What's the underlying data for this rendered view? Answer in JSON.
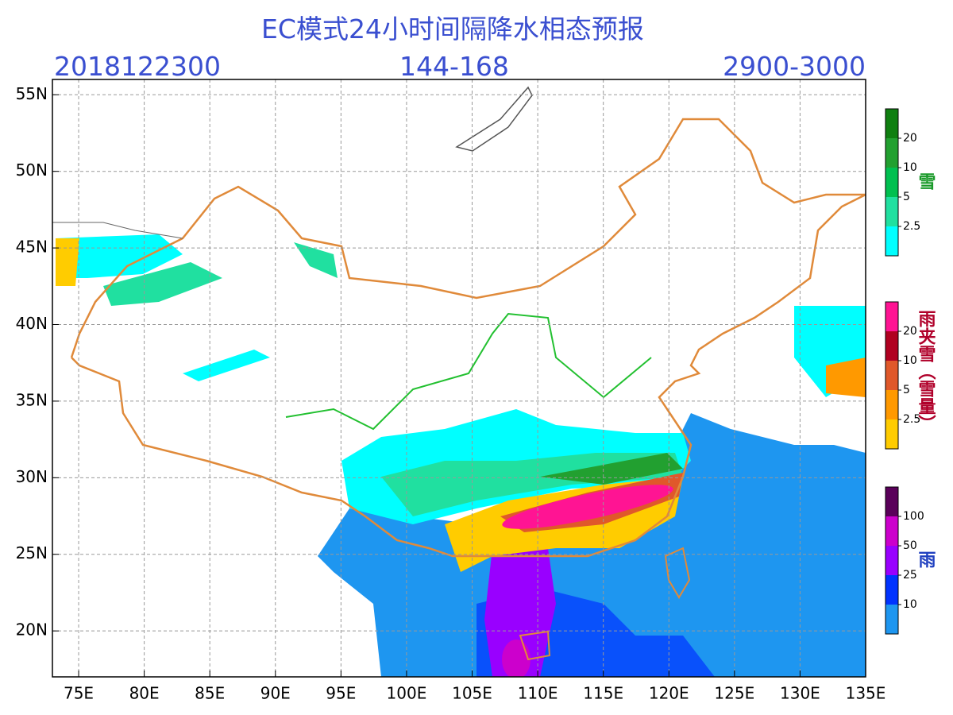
{
  "header": {
    "title": "EC模式24小时间隔降水相态预报",
    "init_time": "2018122300",
    "forecast_hours": "144-168",
    "code": "2900-3000"
  },
  "map": {
    "lonlim": [
      73,
      135
    ],
    "latlim": [
      17,
      56
    ],
    "lonticks": [
      {
        "value": 75,
        "label": "75E"
      },
      {
        "value": 80,
        "label": "80E"
      },
      {
        "value": 85,
        "label": "85E"
      },
      {
        "value": 90,
        "label": "90E"
      },
      {
        "value": 95,
        "label": "95E"
      },
      {
        "value": 100,
        "label": "100E"
      },
      {
        "value": 105,
        "label": "105E"
      },
      {
        "value": 110,
        "label": "110E"
      },
      {
        "value": 115,
        "label": "115E"
      },
      {
        "value": 120,
        "label": "120E"
      },
      {
        "value": 125,
        "label": "125E"
      },
      {
        "value": 130,
        "label": "130E"
      },
      {
        "value": 135,
        "label": "135E"
      }
    ],
    "latticks": [
      {
        "value": 55,
        "label": "55N"
      },
      {
        "value": 50,
        "label": "50N"
      },
      {
        "value": 45,
        "label": "45N"
      },
      {
        "value": 40,
        "label": "40N"
      },
      {
        "value": 35,
        "label": "35N"
      },
      {
        "value": 30,
        "label": "30N"
      },
      {
        "value": 25,
        "label": "25N"
      },
      {
        "value": 20,
        "label": "20N"
      }
    ],
    "grid": true
  },
  "legends": [
    {
      "title": "雪",
      "title_color": "#1a9a2a",
      "colors": [
        "#00ffff",
        "#20e0a0",
        "#00c050",
        "#22a030",
        "#0f7f10"
      ],
      "ticks": [
        2.5,
        5,
        10,
        20
      ]
    },
    {
      "title": "雨夹雪（雪量）",
      "title_color": "#b0002a",
      "colors": [
        "#ffcc00",
        "#ff9900",
        "#e0582a",
        "#b00020",
        "#ff1493"
      ],
      "ticks": [
        2.5,
        5,
        10,
        20
      ]
    },
    {
      "title": "雨",
      "title_color": "#2040c0",
      "colors": [
        "#1e96f0",
        "#0033ff",
        "#9900ff",
        "#cc00cc",
        "#5a005a"
      ],
      "ticks": [
        10,
        25,
        50,
        100
      ]
    }
  ]
}
